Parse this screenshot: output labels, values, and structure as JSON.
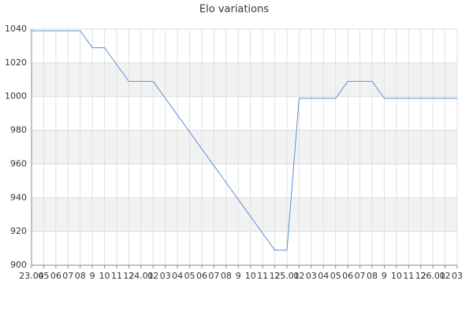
{
  "chart_data": {
    "type": "line",
    "title": "Elo variations",
    "categories": [
      "23.04",
      "05",
      "06",
      "07",
      "08",
      "9",
      "10",
      "11",
      "12",
      "24.01",
      "02",
      "03",
      "04",
      "05",
      "06",
      "07",
      "08",
      "9",
      "10",
      "11",
      "12",
      "25.01",
      "02",
      "03",
      "04",
      "05",
      "06",
      "07",
      "08",
      "9",
      "10",
      "11",
      "12",
      "26.01",
      "02",
      "03"
    ],
    "series": [
      {
        "name": "Elo",
        "color": "#5b8fd9",
        "values": [
          1039,
          1039,
          1039,
          1039,
          1039,
          1029,
          1029,
          1019,
          1009,
          1009,
          1009,
          999,
          989,
          979,
          969,
          959,
          949,
          939,
          929,
          919,
          909,
          909,
          999,
          999,
          999,
          999,
          1009,
          1009,
          1009,
          999,
          999,
          999,
          999,
          999,
          999,
          999
        ]
      }
    ],
    "ylim": [
      900,
      1040
    ],
    "yticks": [
      900,
      920,
      940,
      960,
      980,
      1000,
      1020,
      1040
    ],
    "grid": true
  }
}
